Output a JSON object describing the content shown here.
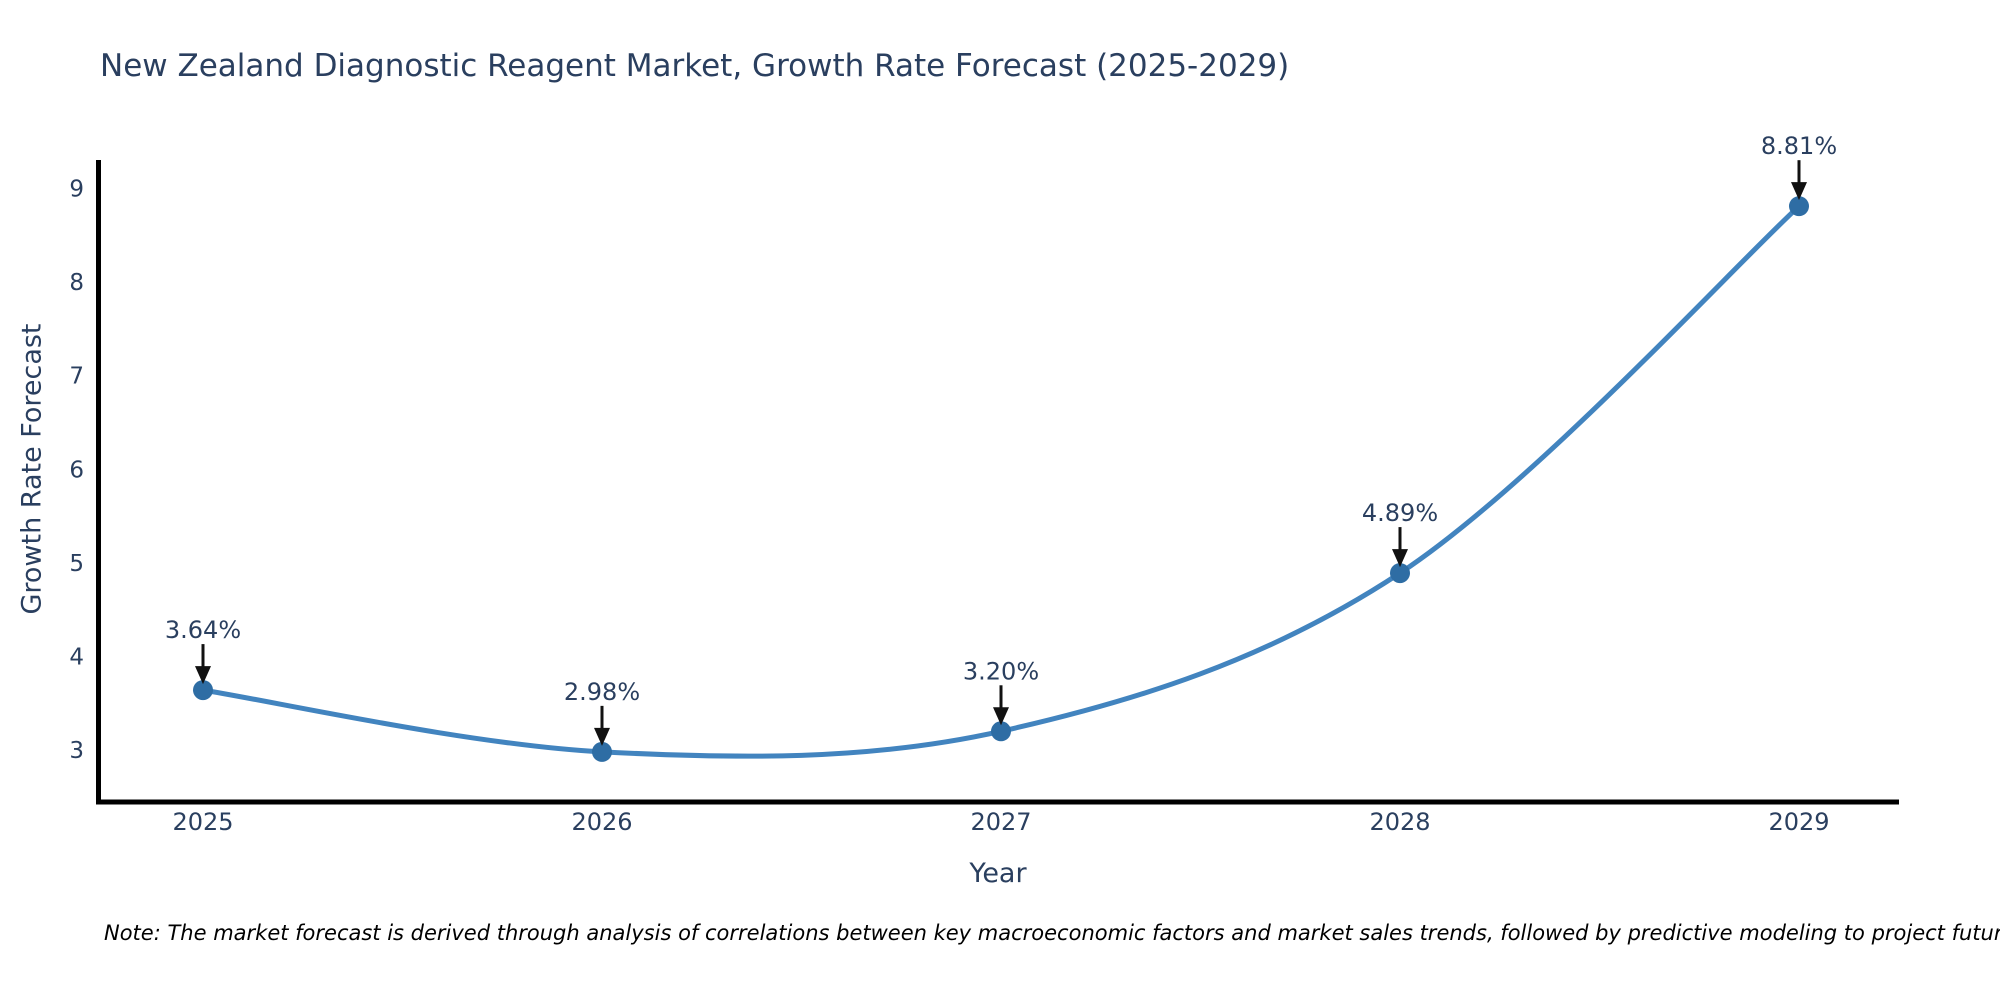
{
  "chart_data": {
    "type": "line",
    "title": "New Zealand Diagnostic Reagent Market, Growth Rate Forecast (2025-2029)",
    "xlabel": "Year",
    "ylabel": "Growth Rate Forecast",
    "categories": [
      "2025",
      "2026",
      "2027",
      "2028",
      "2029"
    ],
    "values": [
      3.64,
      2.98,
      3.2,
      4.89,
      8.81
    ],
    "point_labels": [
      "3.64%",
      "2.98%",
      "3.20%",
      "4.89%",
      "8.81%"
    ],
    "yticks": [
      3,
      4,
      5,
      6,
      7,
      8,
      9
    ],
    "ylim": [
      2.44,
      9.3
    ],
    "grid": "off",
    "legend": "none",
    "line_shape": "spline",
    "line_color": "#4284bf",
    "marker_color": "#2e6da4",
    "axis_color": "#000000",
    "text_color": "#2a3f5f",
    "arrow_color": "#111111",
    "note": "Note: The market forecast is derived through analysis of correlations between key macroeconomic factors and market sales trends, followed by predictive modeling to project future sales."
  }
}
